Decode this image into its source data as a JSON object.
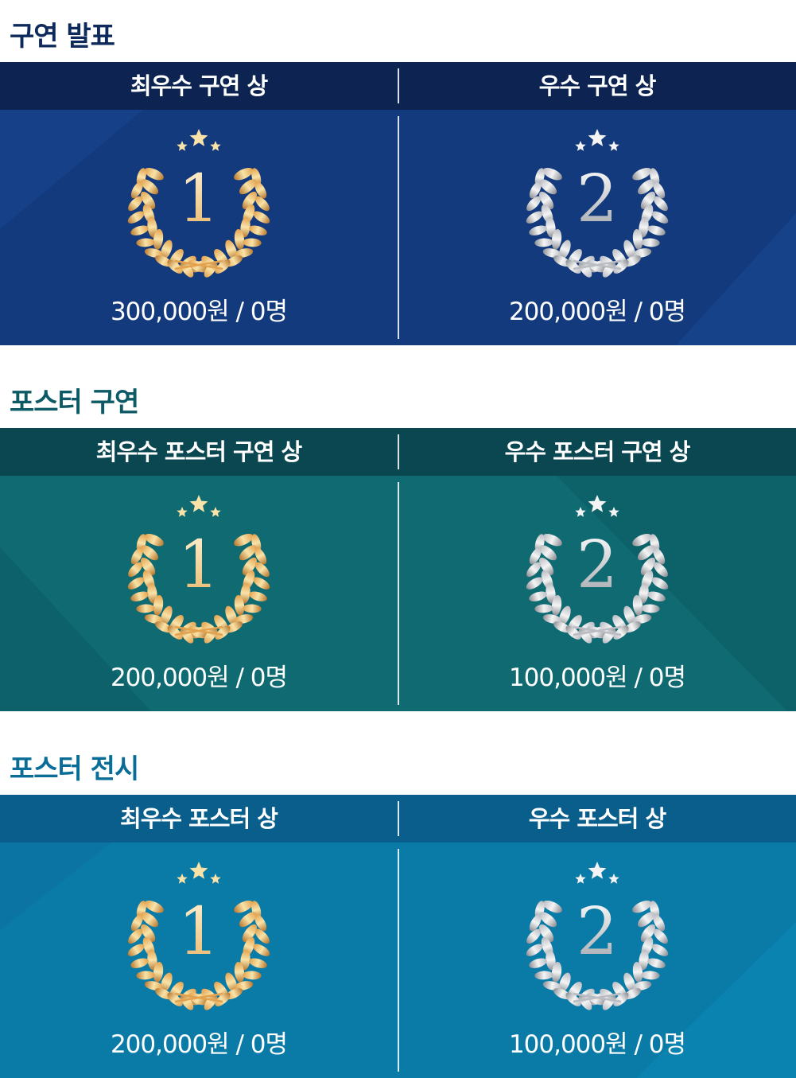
{
  "sections": [
    {
      "title": "구연 발표",
      "title_color": "#0e2a5c",
      "header_color": "#0d2452",
      "body_color": "#133a7c",
      "left": {
        "label": "최우수 구연 상",
        "rank": "1",
        "medal": "gold",
        "prize": "300,000원 / 0명"
      },
      "right": {
        "label": "우수 구연 상",
        "rank": "2",
        "medal": "silver",
        "prize": "200,000원 / 0명"
      }
    },
    {
      "title": "포스터 구연",
      "title_color": "#0b5a66",
      "header_color": "#0b4750",
      "body_color": "#0f6a72",
      "left": {
        "label": "최우수 포스터 구연 상",
        "rank": "1",
        "medal": "gold",
        "prize": "200,000원 / 0명"
      },
      "right": {
        "label": "우수 포스터 구연 상",
        "rank": "2",
        "medal": "silver",
        "prize": "100,000원 / 0명"
      }
    },
    {
      "title": "포스터 전시",
      "title_color": "#0a6d98",
      "header_color": "#0a5e8c",
      "body_color": "#0a7aa6",
      "left": {
        "label": "최우수 포스터 상",
        "rank": "1",
        "medal": "gold",
        "prize": "200,000원 / 0명"
      },
      "right": {
        "label": "우수 포스터 상",
        "rank": "2",
        "medal": "silver",
        "prize": "100,000원 / 0명"
      }
    }
  ]
}
